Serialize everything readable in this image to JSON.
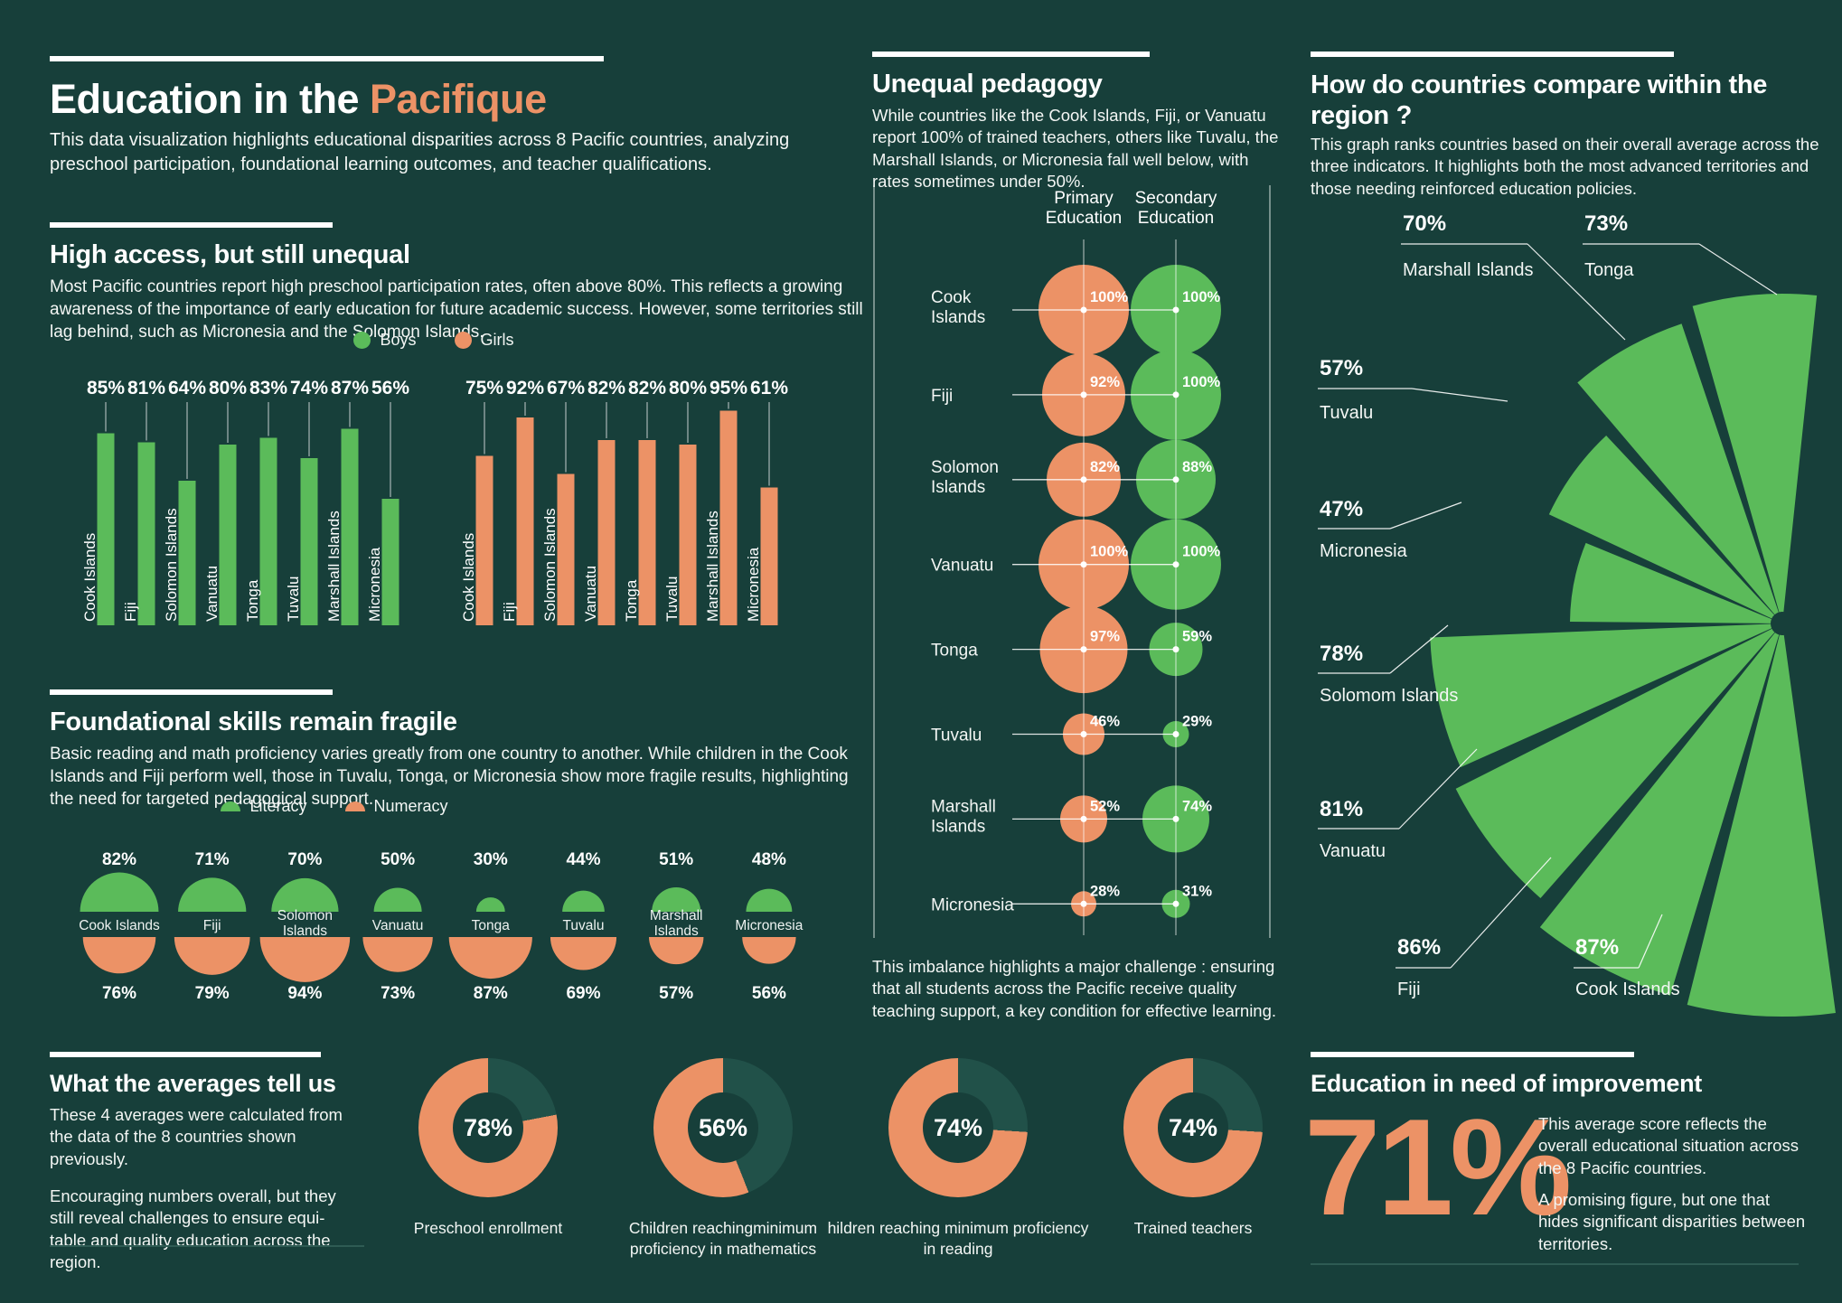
{
  "colors": {
    "background": "#173F3A",
    "green": "#5BBB5A",
    "orange": "#EC9266",
    "donut_track": "#215149",
    "white": "#FFFFFF"
  },
  "header": {
    "title_white": "Education in the",
    "title_accent": "Pacifique",
    "subtitle": "This data visualization highlights educational disparities across 8 Pacific countries, analyzing preschool participation, foundational learning outcomes, and teacher qualifications."
  },
  "countries": [
    "Cook Islands",
    "Fiji",
    "Solomon Islands",
    "Vanuatu",
    "Tonga",
    "Tuvalu",
    "Marshall Islands",
    "Micronesia"
  ],
  "sections": {
    "access": {
      "heading": "High access, but still unequal",
      "body": "Most Pacific countries report high preschool participation rates, often above 80%. This reflects a growing awareness of the importance of early education for future academic success. However, some territories still lag behind, such as Micronesia and the Solomon Islands.",
      "legend_boys": "Boys",
      "legend_girls": "Girls"
    },
    "skills": {
      "heading": "Foundational skills remain fragile",
      "body": "Basic reading and math proficiency varies greatly from one country to another. While children in the Cook Islands and Fiji perform well, those in Tuvalu, Tonga, or Micronesia show more fragile results, highlighting the need for targeted pedagogical support.",
      "legend_literacy": "Literacy",
      "legend_numeracy": "Numeracy"
    },
    "pedagogy": {
      "heading": "Unequal pedagogy",
      "body": "While countries like the Cook Islands, Fiji, or Vanuatu report 100% of trained teachers, others like Tuvalu, the Marshall Islands, or Micronesia fall well below, with rates sometimes under 50%.",
      "footer": "This imbalance highlights a major challenge : ensuring that all students across the Pacific receive quality teaching support, a key condition for effective learning."
    },
    "compare": {
      "heading": "How do countries compare within the region ?",
      "body": "This graph ranks countries based on their overall average across the three indicators. It highlights both the most advanced territories and those needing reinforced education policies."
    },
    "averages": {
      "heading": "What the averages tell us",
      "body1": "These 4 averages were calculated from the data of the 8 countries shown previously.",
      "body2": "Encouraging numbers overall, but they still reveal challenges to ensure equi-table and quality education across the region."
    },
    "improvement": {
      "heading": "Education in need of improvement",
      "big_value": "71%",
      "body1": "This average score reflects the overall educational situation across the 8 Pacific countries.",
      "body2": "A promising figure, but one that hides significant disparities between territories."
    }
  },
  "chart_data": [
    {
      "id": "preschool_boys",
      "type": "bar",
      "title": "Preschool participation — Boys",
      "categories": [
        "Cook Islands",
        "Fiji",
        "Solomon Islands",
        "Vanuatu",
        "Tonga",
        "Tuvalu",
        "Marshall Islands",
        "Micronesia"
      ],
      "values": [
        85,
        81,
        64,
        80,
        83,
        74,
        87,
        56
      ],
      "unit": "%",
      "ylim": [
        0,
        100
      ],
      "color": "green",
      "legend": "Boys"
    },
    {
      "id": "preschool_girls",
      "type": "bar",
      "title": "Preschool participation — Girls",
      "categories": [
        "Cook Islands",
        "Fiji",
        "Solomon Islands",
        "Vanuatu",
        "Tonga",
        "Tuvalu",
        "Marshall Islands",
        "Micronesia"
      ],
      "values": [
        75,
        92,
        67,
        82,
        82,
        80,
        95,
        61
      ],
      "unit": "%",
      "ylim": [
        0,
        100
      ],
      "color": "orange",
      "legend": "Girls"
    },
    {
      "id": "foundational_skills",
      "type": "semicircle",
      "title": "Foundational skills remain fragile",
      "categories": [
        "Cook Islands",
        "Fiji",
        "Solomon Islands",
        "Vanuatu",
        "Tonga",
        "Tuvalu",
        "Marshall Islands",
        "Micronesia"
      ],
      "series": [
        {
          "name": "Literacy",
          "color": "green",
          "values": [
            82,
            71,
            70,
            50,
            30,
            44,
            51,
            48
          ]
        },
        {
          "name": "Numeracy",
          "color": "orange",
          "values": [
            76,
            79,
            94,
            73,
            87,
            69,
            57,
            56
          ]
        }
      ],
      "unit": "%"
    },
    {
      "id": "trained_teachers",
      "type": "bubble",
      "title": "Unequal pedagogy — trained teachers",
      "categories": [
        "Cook Islands",
        "Fiji",
        "Solomon Islands",
        "Vanuatu",
        "Tonga",
        "Tuvalu",
        "Marshall Islands",
        "Micronesia"
      ],
      "series": [
        {
          "name": "Primary Education",
          "color": "orange",
          "values": [
            100,
            92,
            82,
            100,
            97,
            46,
            52,
            28
          ]
        },
        {
          "name": "Secondary Education",
          "color": "green",
          "values": [
            100,
            100,
            88,
            100,
            59,
            29,
            74,
            31
          ]
        }
      ],
      "col_headers": [
        [
          "Primary",
          "Education"
        ],
        [
          "Secondary",
          "Education"
        ]
      ],
      "unit": "%"
    },
    {
      "id": "region_rank",
      "type": "fan",
      "title": "How do countries compare within the region ?",
      "categories": [
        "Tonga",
        "Marshall Islands",
        "Tuvalu",
        "Micronesia",
        "Solomom Islands",
        "Vanuatu",
        "Fiji",
        "Cook Islands"
      ],
      "values": [
        73,
        70,
        57,
        47,
        78,
        81,
        86,
        87
      ],
      "unit": "%"
    },
    {
      "id": "averages_donuts",
      "type": "donut",
      "title": "What the averages tell us",
      "items": [
        {
          "label": "Preschool enrollment",
          "value": 78
        },
        {
          "label": "Children reachingminimum proficiency in mathematics",
          "value": 56
        },
        {
          "label": "hildren reaching minimum proficiency in reading",
          "value": 74
        },
        {
          "label": "Trained teachers",
          "value": 74
        }
      ],
      "unit": "%"
    }
  ]
}
